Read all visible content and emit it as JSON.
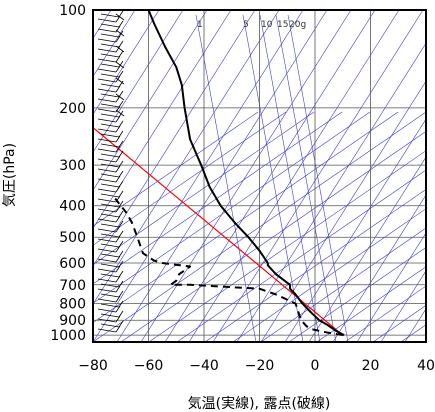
{
  "chart_data": {
    "type": "line",
    "title": "",
    "xlabel": "気温(実線), 露点(破線)",
    "ylabel": "気圧(hPa)",
    "xlim": [
      -80,
      40
    ],
    "ylim": [
      1050,
      100
    ],
    "yscale": "log",
    "grid": true,
    "x_ticks": [
      -80,
      -60,
      -40,
      -20,
      0,
      20,
      40
    ],
    "y_ticks": [
      100,
      200,
      300,
      400,
      500,
      600,
      700,
      800,
      900,
      1000
    ],
    "mixing_ratio_labels": [
      "1",
      "5",
      "10",
      "15",
      "20g"
    ],
    "series": [
      {
        "style": "solid",
        "points": [
          {
            "p": 1000,
            "t": 10.5
          },
          {
            "p": 975,
            "t": 8
          },
          {
            "p": 925,
            "t": 4
          },
          {
            "p": 900,
            "t": 1.5
          },
          {
            "p": 850,
            "t": -1.5
          },
          {
            "p": 800,
            "t": -4.5
          },
          {
            "p": 750,
            "t": -7
          },
          {
            "p": 720,
            "t": -9
          },
          {
            "p": 700,
            "t": -9
          },
          {
            "p": 650,
            "t": -14
          },
          {
            "p": 610,
            "t": -17
          },
          {
            "p": 600,
            "t": -17
          },
          {
            "p": 550,
            "t": -20
          },
          {
            "p": 500,
            "t": -24
          },
          {
            "p": 450,
            "t": -29
          },
          {
            "p": 400,
            "t": -34
          },
          {
            "p": 350,
            "t": -38
          },
          {
            "p": 300,
            "t": -41
          },
          {
            "p": 250,
            "t": -45
          },
          {
            "p": 200,
            "t": -47
          },
          {
            "p": 170,
            "t": -48
          },
          {
            "p": 150,
            "t": -50
          },
          {
            "p": 130,
            "t": -54
          },
          {
            "p": 110,
            "t": -58
          },
          {
            "p": 100,
            "t": -60
          }
        ]
      },
      {
        "style": "dashed",
        "points": [
          {
            "p": 1000,
            "t": 10
          },
          {
            "p": 980,
            "t": 4
          },
          {
            "p": 960,
            "t": -1
          },
          {
            "p": 940,
            "t": -3
          },
          {
            "p": 900,
            "t": -5
          },
          {
            "p": 850,
            "t": -6
          },
          {
            "p": 800,
            "t": -7
          },
          {
            "p": 750,
            "t": -14
          },
          {
            "p": 720,
            "t": -20
          },
          {
            "p": 700,
            "t": -45
          },
          {
            "p": 700,
            "t": -52
          },
          {
            "p": 680,
            "t": -50
          },
          {
            "p": 650,
            "t": -49
          },
          {
            "p": 615,
            "t": -45
          },
          {
            "p": 600,
            "t": -55
          },
          {
            "p": 590,
            "t": -58
          },
          {
            "p": 560,
            "t": -62
          },
          {
            "p": 500,
            "t": -64
          },
          {
            "p": 450,
            "t": -66
          },
          {
            "p": 420,
            "t": -68
          },
          {
            "p": 400,
            "t": -70
          },
          {
            "p": 380,
            "t": -72
          }
        ]
      }
    ],
    "reference_line": {
      "color": "#ff0000",
      "points": [
        {
          "p": 1000,
          "t": 10
        },
        {
          "p": 230,
          "t": -80
        }
      ]
    },
    "colors": {
      "isopleth": "#3c3cd8",
      "temperature": "#000000",
      "parcel": "#ff0000",
      "grid": "#555555",
      "wind": "#000000"
    }
  }
}
